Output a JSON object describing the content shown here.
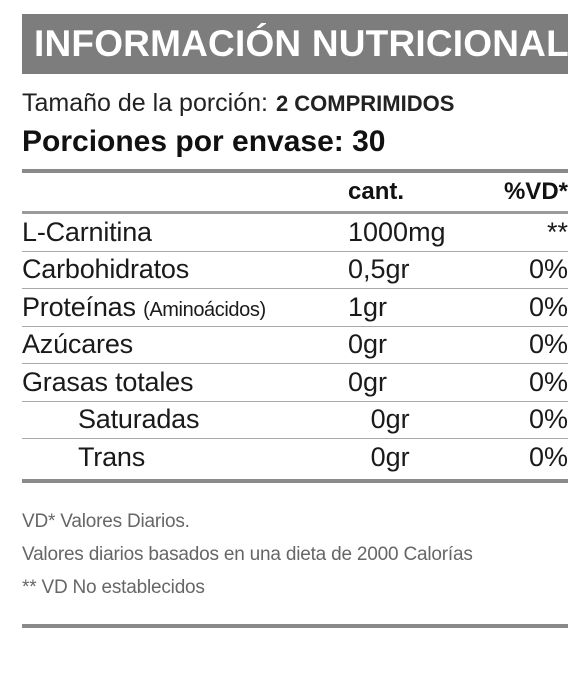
{
  "header": {
    "title": "INFORMACIÓN NUTRICIONAL"
  },
  "serving": {
    "size_label": "Tamaño de la porción:",
    "size_value": "2 COMPRIMIDOS",
    "per_container": "Porciones por envase: 30"
  },
  "table": {
    "col_amount": "cant.",
    "col_vd": "%VD*",
    "rows": [
      {
        "name": "L-Carnitina",
        "sub": "",
        "amount": "1000mg",
        "vd": "**"
      },
      {
        "name": "Carbohidratos",
        "sub": "",
        "amount": "0,5gr",
        "vd": "0%"
      },
      {
        "name": "Proteínas",
        "sub": "(Aminoácidos)",
        "amount": "1gr",
        "vd": "0%"
      },
      {
        "name": "Azúcares",
        "sub": "",
        "amount": "0gr",
        "vd": "0%"
      },
      {
        "name": "Grasas totales",
        "sub": "",
        "amount": "0gr",
        "vd": "0%"
      },
      {
        "name": "Saturadas",
        "sub": "",
        "amount": "0gr",
        "vd": "0%"
      },
      {
        "name": "Trans",
        "sub": "",
        "amount": "0gr",
        "vd": "0%"
      }
    ]
  },
  "footnotes": {
    "line1": "VD* Valores Diarios.",
    "line2": "Valores diarios basados en una dieta de 2000 Calorías",
    "line3": "** VD No establecidos"
  }
}
